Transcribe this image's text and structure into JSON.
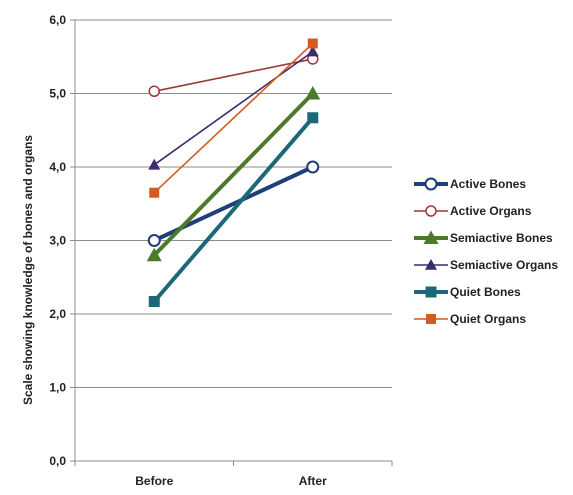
{
  "chart_data": {
    "type": "line",
    "categories": [
      "Before",
      "After"
    ],
    "ylabel": "Scale showing knowledge of bones and organs",
    "ylim": [
      0,
      6
    ],
    "yticks": [
      "0,0",
      "1,0",
      "2,0",
      "3,0",
      "4,0",
      "5,0",
      "6,0"
    ],
    "grid": "horizontal",
    "legend_position": "right",
    "series": [
      {
        "name": "Active Bones",
        "values": [
          3.0,
          4.0
        ],
        "color": "#1f3e7a",
        "marker": "circle-open",
        "weight": "thick"
      },
      {
        "name": "Active Organs",
        "values": [
          5.03,
          5.47
        ],
        "color": "#9b3a36",
        "marker": "circle-open",
        "weight": "thin"
      },
      {
        "name": "Semiactive Bones",
        "values": [
          2.8,
          5.0
        ],
        "color": "#4a7a2a",
        "marker": "triangle",
        "weight": "thick"
      },
      {
        "name": "Semiactive Organs",
        "values": [
          4.03,
          5.57
        ],
        "color": "#3e2a6e",
        "marker": "triangle",
        "weight": "thin"
      },
      {
        "name": "Quiet Bones",
        "values": [
          2.17,
          4.67
        ],
        "color": "#1c6878",
        "marker": "square",
        "weight": "thick"
      },
      {
        "name": "Quiet Organs",
        "values": [
          3.65,
          5.68
        ],
        "color": "#d45a1e",
        "marker": "square",
        "weight": "thin"
      }
    ]
  }
}
